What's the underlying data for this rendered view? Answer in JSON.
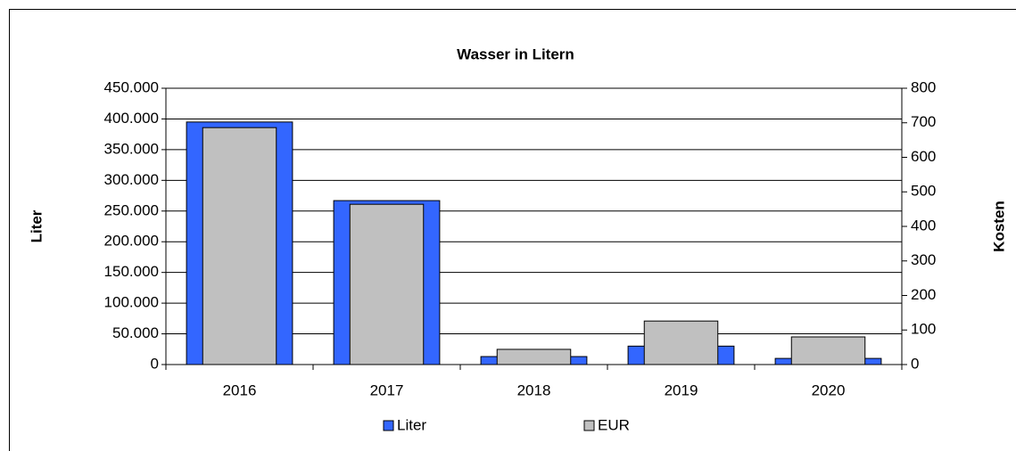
{
  "chart_data": {
    "type": "bar",
    "title": "Wasser in Litern",
    "categories": [
      "2016",
      "2017",
      "2018",
      "2019",
      "2020"
    ],
    "series": [
      {
        "name": "Liter",
        "color": "#3366ff",
        "values": [
          395000,
          267000,
          13000,
          30000,
          10000
        ]
      },
      {
        "name": "EUR",
        "color": "#c0c0c0",
        "axis": "y2",
        "values": [
          686,
          464,
          44,
          126,
          80
        ]
      }
    ],
    "y_label": "Liter",
    "y2_label": "Kosten",
    "ylim": [
      0,
      450000
    ],
    "yticks": [
      0,
      {
        "value": 50000,
        "label": "50.000"
      },
      {
        "value": 100000,
        "label": "100.000"
      },
      {
        "value": 150000,
        "label": "150.000"
      },
      {
        "value": 200000,
        "label": "200.000"
      },
      {
        "value": 250000,
        "label": "250.000"
      },
      {
        "value": 300000,
        "label": "300.000"
      },
      {
        "value": 350000,
        "label": "350.000"
      },
      {
        "value": 400000,
        "label": "400.000"
      },
      {
        "value": 450000,
        "label": "450.000"
      }
    ],
    "y2lim": [
      0,
      800
    ],
    "y2ticks": [
      0,
      100,
      200,
      300,
      400,
      500,
      600,
      700,
      800
    ],
    "grid": true,
    "legend": "bottom"
  }
}
